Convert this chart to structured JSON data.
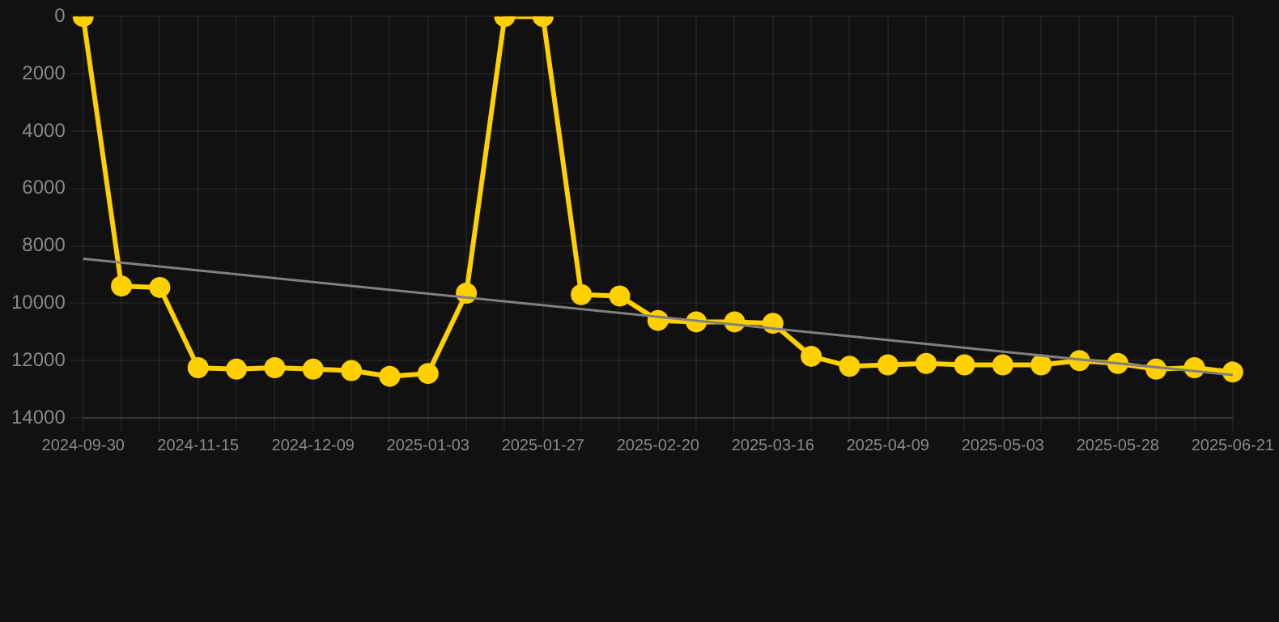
{
  "chart_data": {
    "type": "line",
    "categories": [
      "2024-09-30",
      null,
      null,
      "2024-11-15",
      null,
      null,
      "2024-12-09",
      null,
      null,
      "2025-01-03",
      null,
      null,
      "2025-01-27",
      null,
      null,
      "2025-02-20",
      null,
      null,
      "2025-03-16",
      null,
      null,
      "2025-04-09",
      null,
      null,
      "2025-05-03",
      null,
      null,
      "2025-05-28",
      null,
      null,
      "2025-06-21"
    ],
    "series": [
      {
        "color": "#ffd000",
        "marker": "circle",
        "line_style": "solid",
        "values": [
          0,
          9400,
          9450,
          12250,
          12300,
          12250,
          12300,
          12350,
          12550,
          12450,
          9650,
          0,
          0,
          9700,
          9750,
          10600,
          10650,
          10650,
          10700,
          11850,
          12200,
          12150,
          12100,
          12150,
          12150,
          12150,
          12000,
          12100,
          12300,
          12250,
          12400
        ]
      },
      {
        "type": "line",
        "color": "#808080",
        "marker": "none",
        "line_style": "solid",
        "values": [
          8450,
          null,
          null,
          null,
          null,
          null,
          null,
          null,
          null,
          null,
          null,
          null,
          null,
          null,
          null,
          null,
          null,
          null,
          null,
          null,
          null,
          null,
          null,
          null,
          null,
          null,
          null,
          null,
          null,
          null,
          12500
        ]
      }
    ],
    "ylim": [
      14000,
      0
    ],
    "yticks": [
      0,
      2000,
      4000,
      6000,
      8000,
      10000,
      12000,
      14000
    ],
    "grid": true,
    "legend": false
  }
}
